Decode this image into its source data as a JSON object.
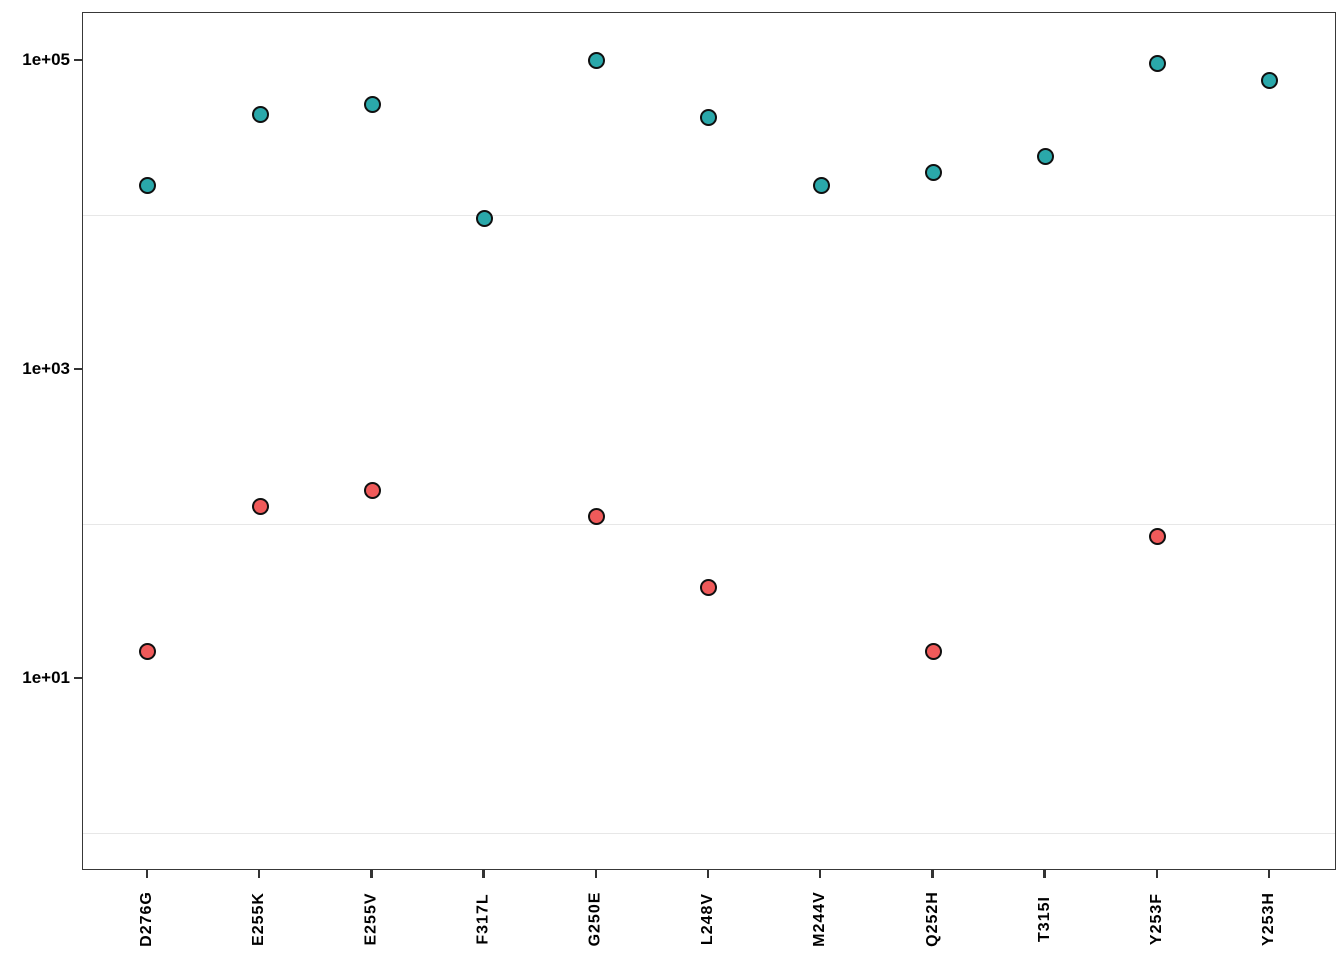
{
  "chart_data": {
    "type": "scatter",
    "title": "",
    "xlabel": "",
    "ylabel": "",
    "legend": "none",
    "grid": "minor-horizontal-only",
    "categories": [
      "D276G",
      "E255K",
      "E255V",
      "F317L",
      "G250E",
      "L248V",
      "M244V",
      "Q252H",
      "T315I",
      "Y253F",
      "Y253H"
    ],
    "series": [
      {
        "name": "teal",
        "color": "#2aa8aa",
        "values": [
          15500,
          45000,
          52000,
          9600,
          100000,
          43000,
          15700,
          19000,
          24000,
          96000,
          75000
        ]
      },
      {
        "name": "red",
        "color": "#f05a5a",
        "values": [
          15,
          130,
          165,
          null,
          112,
          39,
          null,
          15,
          null,
          84,
          null
        ]
      }
    ],
    "y_axis": {
      "scale": "log10",
      "range": [
        0.57,
        205000
      ],
      "ticks": [
        {
          "label": "1e+05",
          "value": 100000
        },
        {
          "label": "1e+03",
          "value": 1000
        },
        {
          "label": "1e+01",
          "value": 10
        }
      ],
      "minor_gridlines": [
        10000,
        100,
        1
      ]
    },
    "marker": {
      "shape": "circle",
      "outline_color": "#101010"
    }
  }
}
